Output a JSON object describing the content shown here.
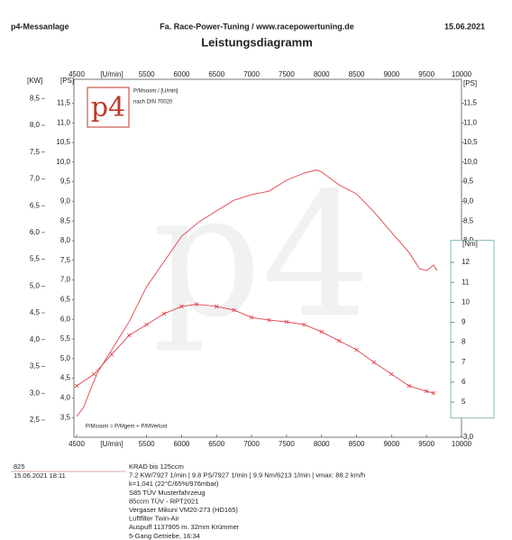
{
  "header": {
    "left": "p4-Messanlage",
    "center": "Fa. Race-Power-Tuning / www.racepowertuning.de",
    "date": "15.06.2021"
  },
  "chart_data": {
    "type": "line",
    "title": "Leistungsdiagramm",
    "xlabel": "[U/min]",
    "ylabel": "[PS]",
    "ylabel_right": "[PS]",
    "y2label": "[KW]",
    "y3label": "[Nm]",
    "logo": "p4",
    "legend_lines": [
      "P/Msoom / [U/min]",
      "nach DIN 70020"
    ],
    "formula": "P/Msoom = P/Mgem + P/MVerlust",
    "xlim": [
      4500,
      10000
    ],
    "xticks": [
      4500,
      5500,
      6000,
      6500,
      7000,
      7500,
      8000,
      8500,
      9000,
      9500,
      10000
    ],
    "ylim": [
      3.0,
      12.0
    ],
    "yticks": [
      {
        "value": 3.5,
        "label": "3,5"
      },
      {
        "value": 4.0,
        "label": "4,0"
      },
      {
        "value": 4.5,
        "label": "4,5"
      },
      {
        "value": 5.0,
        "label": "5,0"
      },
      {
        "value": 5.5,
        "label": "5,5"
      },
      {
        "value": 6.0,
        "label": "6,0"
      },
      {
        "value": 6.5,
        "label": "6,5"
      },
      {
        "value": 7.0,
        "label": "7,0"
      },
      {
        "value": 7.5,
        "label": "7,5"
      },
      {
        "value": 8.0,
        "label": "8,0"
      },
      {
        "value": 8.5,
        "label": "8,5"
      },
      {
        "value": 9.0,
        "label": "9,0"
      },
      {
        "value": 9.5,
        "label": "9,5"
      },
      {
        "value": 10.0,
        "label": "10,0"
      },
      {
        "value": 10.5,
        "label": "10,5"
      },
      {
        "value": 11.0,
        "label": "11,0"
      },
      {
        "value": 11.5,
        "label": "11,5"
      }
    ],
    "yticks_right": [
      {
        "value": 3.0,
        "label": "3,0"
      },
      {
        "value": 8.0,
        "label": "8,0"
      },
      {
        "value": 8.5,
        "label": "8,5"
      },
      {
        "value": 9.0,
        "label": "9,0"
      },
      {
        "value": 9.5,
        "label": "9,5"
      },
      {
        "value": 10.0,
        "label": "10,0"
      },
      {
        "value": 10.5,
        "label": "10,5"
      },
      {
        "value": 11.0,
        "label": "11,0"
      },
      {
        "value": 11.5,
        "label": "11,5"
      }
    ],
    "y2lim": [
      2.18,
      8.78
    ],
    "y2ticks": [
      {
        "value": 2.5,
        "label": "2,5"
      },
      {
        "value": 3.0,
        "label": "3,0"
      },
      {
        "value": 3.5,
        "label": "3,5"
      },
      {
        "value": 4.0,
        "label": "4,0"
      },
      {
        "value": 4.5,
        "label": "4,5"
      },
      {
        "value": 5.0,
        "label": "5,0"
      },
      {
        "value": 5.5,
        "label": "5,5"
      },
      {
        "value": 6.0,
        "label": "6,0"
      },
      {
        "value": 6.5,
        "label": "6,5"
      },
      {
        "value": 7.0,
        "label": "7,0"
      },
      {
        "value": 7.5,
        "label": "7,5"
      },
      {
        "value": 8.0,
        "label": "8,0"
      },
      {
        "value": 8.5,
        "label": "8,5"
      }
    ],
    "y3lim": [
      3.24,
      20.96
    ],
    "y3ticks": [
      5,
      6,
      7,
      8,
      9,
      10,
      11,
      12
    ],
    "series": [
      {
        "color": "#e0434b",
        "axis": "y",
        "markers": false,
        "x": [
          4500,
          4600,
          4700,
          4800,
          5000,
          5250,
          5500,
          5750,
          6000,
          6250,
          6500,
          6750,
          7000,
          7250,
          7500,
          7750,
          7927,
          8000,
          8250,
          8500,
          8750,
          9000,
          9250,
          9400,
          9500,
          9600,
          9650
        ],
        "values": [
          3.53,
          3.76,
          4.22,
          4.65,
          5.22,
          5.94,
          6.83,
          7.47,
          8.11,
          8.48,
          8.76,
          9.03,
          9.17,
          9.26,
          9.54,
          9.72,
          9.8,
          9.75,
          9.42,
          9.19,
          8.73,
          8.21,
          7.7,
          7.29,
          7.24,
          7.38,
          7.24
        ]
      },
      {
        "color": "#e0434b",
        "axis": "y3",
        "markers": true,
        "x": [
          4500,
          4750,
          5000,
          5250,
          5500,
          5750,
          6000,
          6213,
          6500,
          6750,
          7000,
          7250,
          7500,
          7750,
          8000,
          8250,
          8500,
          8750,
          9000,
          9250,
          9500,
          9600
        ],
        "values": [
          5.81,
          6.4,
          7.39,
          8.34,
          8.88,
          9.43,
          9.79,
          9.9,
          9.79,
          9.61,
          9.24,
          9.11,
          9.02,
          8.88,
          8.52,
          8.07,
          7.62,
          6.99,
          6.4,
          5.81,
          5.54,
          5.45
        ]
      }
    ]
  },
  "footer": {
    "id": "825",
    "timestamp": "15.06.2021  18:11",
    "lines": [
      "KRAD bis  125ccm",
      "7.2 KW/7927 1/min  |  9.8 PS/7927 1/min  |  9.9 Nm/6213 1/min  |  vmax: 88.2 km/h",
      "k=1,041  (22°C/65%/976mbar)",
      "S85 TÜV Musterfahrzeug",
      "85ccm TÜV -  RPT2021",
      "Vergaser Mikuni VM20-273 (HD165)",
      "Luftfilter Twin-Air",
      "Auspuff 1137905 m. 32mm Krümmer",
      "5-Gang Getriebe, 16:34"
    ]
  }
}
